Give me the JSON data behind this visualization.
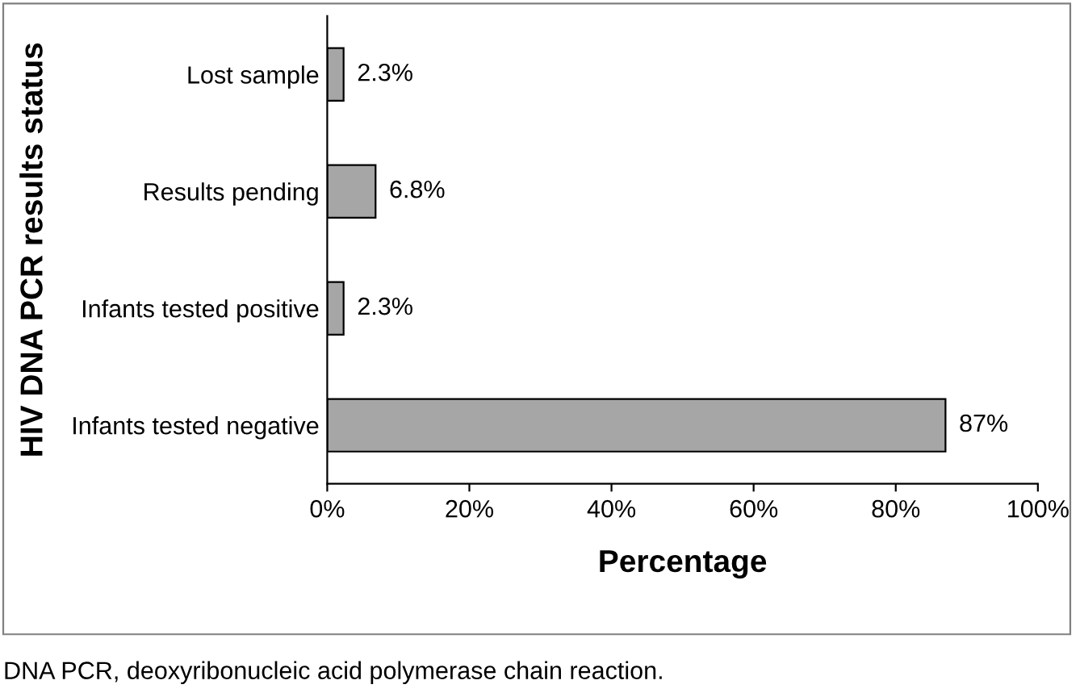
{
  "chart_data": {
    "type": "bar",
    "orientation": "horizontal",
    "xlabel": "Percentage",
    "ylabel": "HIV DNA PCR results status",
    "categories": [
      "Lost sample",
      "Results pending",
      "Infants tested positive",
      "Infants tested negative"
    ],
    "values": [
      2.3,
      6.8,
      2.3,
      87
    ],
    "value_labels": [
      "2.3%",
      "6.8%",
      "2.3%",
      "87%"
    ],
    "color": "#a6a6a6",
    "xlim": [
      0,
      100
    ],
    "xticks": [
      {
        "value": 0,
        "label": "0%"
      },
      {
        "value": 20,
        "label": "20%"
      },
      {
        "value": 40,
        "label": "40%"
      },
      {
        "value": 60,
        "label": "60%"
      },
      {
        "value": 80,
        "label": "80%"
      },
      {
        "value": 100,
        "label": "100%"
      }
    ],
    "grid": false,
    "legend": false,
    "annotations": [
      "DNA PCR, deoxyribonucleic acid polymerase chain reaction."
    ]
  }
}
